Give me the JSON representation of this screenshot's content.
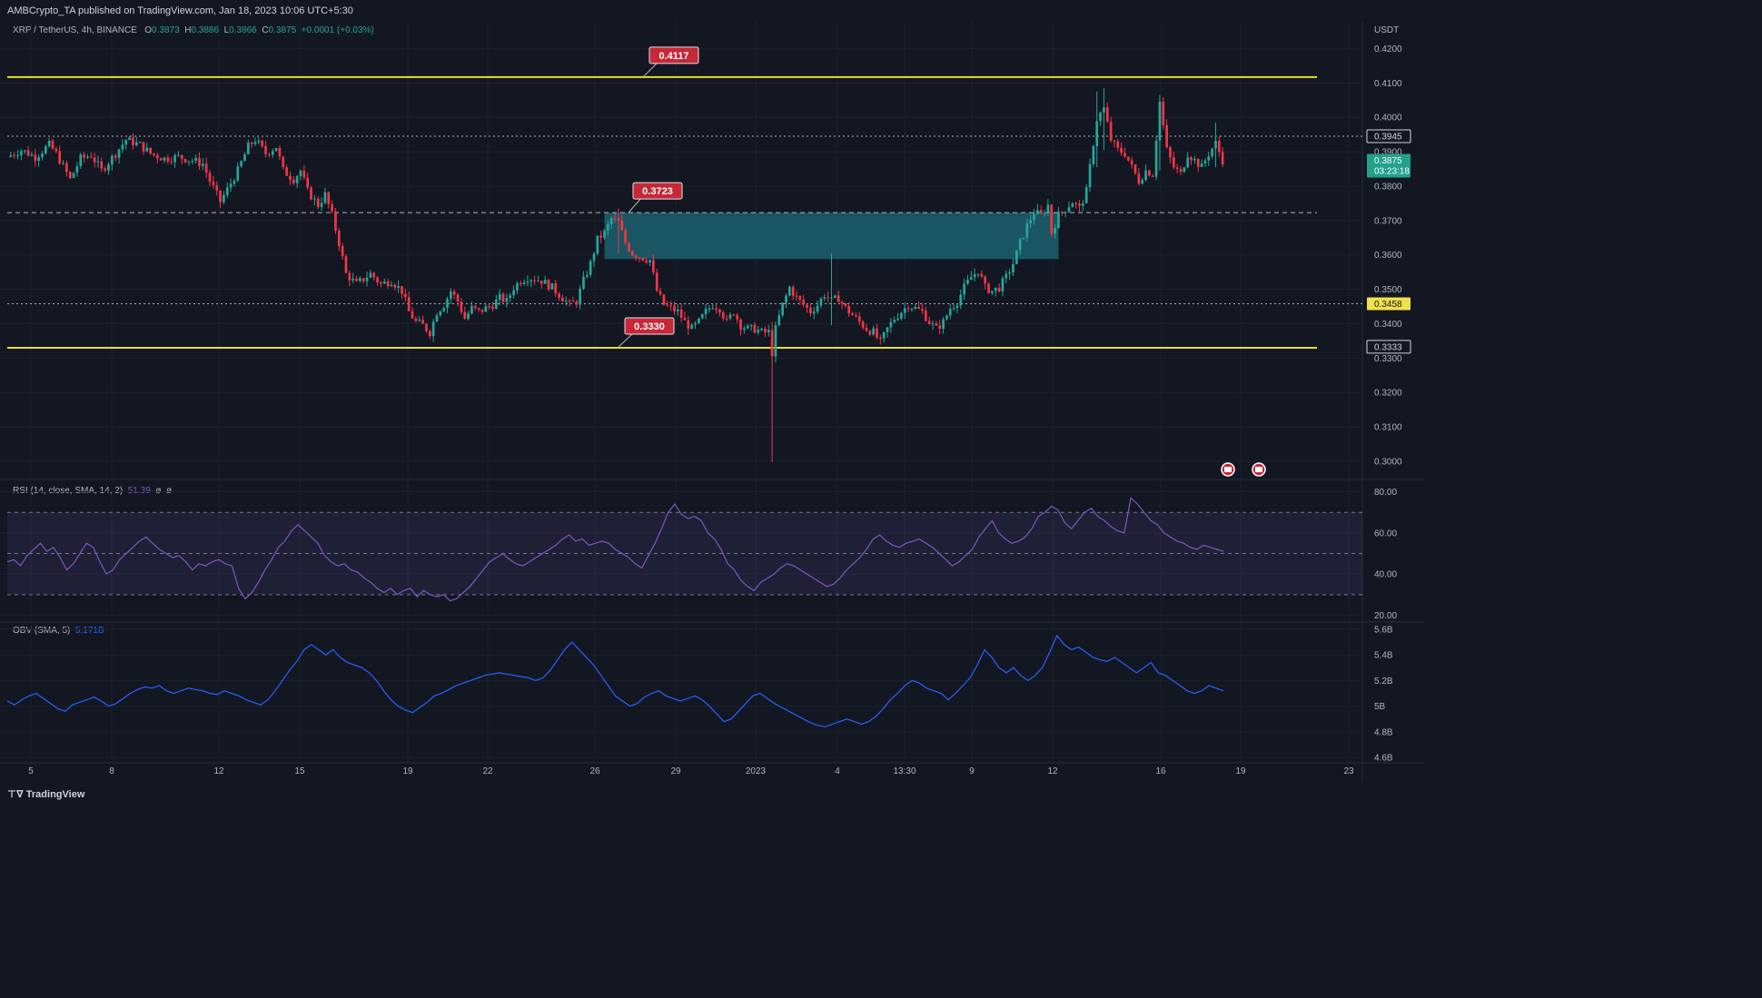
{
  "header": {
    "published": "AMBCrypto_TA published on TradingView.com, Jan 18, 2023 10:06 UTC+5:30",
    "symbol": "XRP / TetherUS, 4h, BINANCE",
    "o_label": "O",
    "o_value": "0.3873",
    "h_label": "H",
    "h_value": "0.3886",
    "l_label": "L",
    "l_value": "0.3866",
    "c_label": "C",
    "c_value": "0.3875",
    "change": "+0.0001 (+0.03%)"
  },
  "footer": {
    "brand": "TradingView"
  },
  "colors": {
    "up": "#26a69a",
    "down": "#f23645",
    "level": "#e8e02a",
    "zone": "#1c6b78",
    "rsi": "#7e57c2",
    "obv": "#2962ff",
    "grid": "#1e222d"
  },
  "chart_data": [
    {
      "type": "candlestick",
      "currency": "USDT",
      "y_ticks": [
        "0.4200",
        "0.4100",
        "0.4000",
        "0.3900",
        "0.3800",
        "0.3700",
        "0.3600",
        "0.3500",
        "0.3400",
        "0.3300",
        "0.3200",
        "0.3100",
        "0.3000"
      ],
      "ylim": [
        0.2955,
        0.4225
      ],
      "x_ticks": [
        "5",
        "8",
        "12",
        "15",
        "19",
        "22",
        "26",
        "29",
        "2023",
        "4",
        "13:30",
        "9",
        "12",
        "16",
        "19",
        "23"
      ],
      "levels": [
        {
          "value": 0.4117,
          "label": "0.4117",
          "style": "solid",
          "color": "#e8e02a"
        },
        {
          "value": 0.333,
          "label": "0.3330",
          "style": "solid",
          "color": "#e8e02a"
        },
        {
          "value": 0.3723,
          "label": "0.3723",
          "style": "dashed",
          "color": "#b2b5be"
        },
        {
          "value": 0.3945,
          "label": "0.3945",
          "style": "dotted",
          "color": "#b2b5be"
        },
        {
          "value": 0.3458,
          "label": "0.3458",
          "style": "dotted",
          "color": "#b2b5be"
        }
      ],
      "axis_labels": [
        {
          "text": "0.3945",
          "kind": "dark"
        },
        {
          "text": "0.3875",
          "sub": "03:23:18",
          "kind": "green"
        },
        {
          "text": "0.3458",
          "kind": "yellow"
        },
        {
          "text": "0.3333",
          "kind": "dark"
        }
      ],
      "zone": {
        "top": 0.3723,
        "bottom": 0.3588
      },
      "close_path": [
        [
          0,
          0.3885
        ],
        [
          4,
          0.3905
        ],
        [
          8,
          0.3885
        ],
        [
          12,
          0.392
        ],
        [
          14,
          0.3895
        ],
        [
          18,
          0.382
        ],
        [
          21,
          0.388
        ],
        [
          24,
          0.389
        ],
        [
          27,
          0.3845
        ],
        [
          31,
          0.3895
        ],
        [
          34,
          0.3935
        ],
        [
          38,
          0.392
        ],
        [
          41,
          0.3895
        ],
        [
          45,
          0.388
        ],
        [
          49,
          0.3885
        ],
        [
          53,
          0.3875
        ],
        [
          56,
          0.3865
        ],
        [
          58,
          0.3815
        ],
        [
          61,
          0.3755
        ],
        [
          63,
          0.379
        ],
        [
          66,
          0.3845
        ],
        [
          69,
          0.3915
        ],
        [
          71,
          0.3935
        ],
        [
          74,
          0.3895
        ],
        [
          77,
          0.3915
        ],
        [
          79,
          0.3845
        ],
        [
          82,
          0.382
        ],
        [
          84,
          0.3845
        ],
        [
          86,
          0.3785
        ],
        [
          89,
          0.3745
        ],
        [
          91,
          0.3775
        ],
        [
          93,
          0.3715
        ],
        [
          95,
          0.3635
        ],
        [
          97,
          0.3545
        ],
        [
          100,
          0.3515
        ],
        [
          104,
          0.3545
        ],
        [
          107,
          0.3515
        ],
        [
          110,
          0.3525
        ],
        [
          113,
          0.3495
        ],
        [
          115,
          0.3435
        ],
        [
          117,
          0.3405
        ],
        [
          119,
          0.3395
        ],
        [
          121,
          0.3375
        ],
        [
          123,
          0.3435
        ],
        [
          125,
          0.3455
        ],
        [
          127,
          0.3495
        ],
        [
          129,
          0.3465
        ],
        [
          131,
          0.3415
        ],
        [
          133,
          0.3445
        ],
        [
          135,
          0.3435
        ],
        [
          137,
          0.3445
        ],
        [
          139,
          0.3455
        ],
        [
          141,
          0.3475
        ],
        [
          143,
          0.3465
        ],
        [
          145,
          0.3505
        ],
        [
          147,
          0.3525
        ],
        [
          149,
          0.3535
        ],
        [
          153,
          0.3525
        ],
        [
          156,
          0.3505
        ],
        [
          159,
          0.3475
        ],
        [
          161,
          0.3455
        ],
        [
          163,
          0.3465
        ],
        [
          165,
          0.3525
        ],
        [
          167,
          0.3575
        ],
        [
          169,
          0.3645
        ],
        [
          171,
          0.3665
        ],
        [
          173,
          0.3705
        ],
        [
          175,
          0.3695
        ],
        [
          177,
          0.3635
        ],
        [
          179,
          0.3605
        ],
        [
          181,
          0.3595
        ],
        [
          184,
          0.3585
        ],
        [
          186,
          0.3495
        ],
        [
          188,
          0.3455
        ],
        [
          190,
          0.3445
        ],
        [
          192,
          0.3435
        ],
        [
          194,
          0.3405
        ],
        [
          196,
          0.3385
        ],
        [
          198,
          0.3405
        ],
        [
          200,
          0.3435
        ],
        [
          202,
          0.3455
        ],
        [
          204,
          0.3445
        ],
        [
          206,
          0.3405
        ],
        [
          208,
          0.3435
        ],
        [
          210,
          0.3395
        ],
        [
          212,
          0.3385
        ],
        [
          214,
          0.3385
        ],
        [
          216,
          0.3375
        ],
        [
          218,
          0.3375
        ],
        [
          219,
          0.3315
        ],
        [
          220,
          0.3385
        ],
        [
          222,
          0.3455
        ],
        [
          224,
          0.3505
        ],
        [
          226,
          0.3475
        ],
        [
          228,
          0.3455
        ],
        [
          230,
          0.3435
        ],
        [
          232,
          0.3455
        ],
        [
          234,
          0.3485
        ],
        [
          236,
          0.3465
        ],
        [
          238,
          0.3475
        ],
        [
          240,
          0.3445
        ],
        [
          242,
          0.3425
        ],
        [
          244,
          0.3405
        ],
        [
          246,
          0.3385
        ],
        [
          248,
          0.3375
        ],
        [
          250,
          0.3345
        ],
        [
          252,
          0.3385
        ],
        [
          254,
          0.3415
        ],
        [
          256,
          0.3435
        ],
        [
          258,
          0.3455
        ],
        [
          260,
          0.3445
        ],
        [
          262,
          0.3435
        ],
        [
          264,
          0.3405
        ],
        [
          266,
          0.3385
        ],
        [
          268,
          0.3405
        ],
        [
          270,
          0.3445
        ],
        [
          272,
          0.3465
        ],
        [
          274,
          0.3505
        ],
        [
          276,
          0.3535
        ],
        [
          278,
          0.3555
        ],
        [
          280,
          0.3505
        ],
        [
          282,
          0.3495
        ],
        [
          284,
          0.3505
        ],
        [
          286,
          0.3535
        ],
        [
          288,
          0.3575
        ],
        [
          290,
          0.3635
        ],
        [
          292,
          0.3685
        ],
        [
          294,
          0.3725
        ],
        [
          296,
          0.3715
        ],
        [
          298,
          0.3745
        ],
        [
          299,
          0.3665
        ],
        [
          301,
          0.3715
        ],
        [
          303,
          0.3735
        ],
        [
          305,
          0.3755
        ],
        [
          307,
          0.3735
        ],
        [
          309,
          0.3785
        ],
        [
          310,
          0.3855
        ],
        [
          312,
          0.3995
        ],
        [
          314,
          0.4025
        ],
        [
          316,
          0.3935
        ],
        [
          318,
          0.3905
        ],
        [
          320,
          0.3895
        ],
        [
          322,
          0.3855
        ],
        [
          324,
          0.3815
        ],
        [
          326,
          0.3845
        ],
        [
          328,
          0.3835
        ],
        [
          330,
          0.4045
        ],
        [
          332,
          0.3905
        ],
        [
          334,
          0.3855
        ],
        [
          336,
          0.3835
        ],
        [
          338,
          0.3895
        ],
        [
          340,
          0.3875
        ],
        [
          342,
          0.3855
        ],
        [
          344,
          0.3895
        ],
        [
          346,
          0.3925
        ],
        [
          348,
          0.3875
        ]
      ],
      "spikes": [
        {
          "i": 219,
          "low": 0.2998,
          "high": 0.3405
        },
        {
          "i": 236,
          "low": 0.3395,
          "high": 0.3605
        },
        {
          "i": 312,
          "low": 0.3855,
          "high": 0.4075
        },
        {
          "i": 314,
          "low": 0.3905,
          "high": 0.4085
        },
        {
          "i": 330,
          "low": 0.3845,
          "high": 0.4065
        },
        {
          "i": 346,
          "low": 0.3855,
          "high": 0.3985
        },
        {
          "i": 175,
          "low": 0.3605,
          "high": 0.3735
        }
      ]
    },
    {
      "type": "line",
      "title": "RSI (14, close, SMA, 14, 2)",
      "values_shown": [
        "51.39",
        "ø",
        "ø"
      ],
      "y_ticks": [
        "80.00",
        "60.00",
        "40.00",
        "20.00"
      ],
      "ylim": [
        18,
        82
      ],
      "band": [
        30,
        70
      ],
      "midline": 50,
      "series": [
        {
          "values": [
            46,
            47,
            44,
            49,
            52,
            55,
            51,
            53,
            48,
            42,
            45,
            50,
            55,
            53,
            46,
            40,
            42,
            47,
            50,
            53,
            56,
            58,
            55,
            52,
            50,
            48,
            49,
            46,
            42,
            45,
            44,
            46,
            47,
            45,
            44,
            33,
            28,
            31,
            36,
            42,
            47,
            53,
            56,
            61,
            64,
            61,
            58,
            55,
            49,
            46,
            44,
            45,
            42,
            41,
            38,
            36,
            33,
            31,
            33,
            30,
            32,
            33,
            29,
            32,
            30,
            29,
            30,
            27,
            28,
            31,
            34,
            38,
            42,
            46,
            48,
            50,
            47,
            45,
            44,
            46,
            48,
            50,
            52,
            54,
            57,
            59,
            56,
            57,
            54,
            55,
            56,
            55,
            52,
            50,
            48,
            45,
            43,
            49,
            55,
            62,
            70,
            74,
            69,
            67,
            68,
            66,
            60,
            57,
            52,
            45,
            42,
            37,
            34,
            32,
            36,
            38,
            40,
            43,
            45,
            44,
            42,
            40,
            38,
            36,
            34,
            35,
            38,
            42,
            45,
            48,
            52,
            57,
            59,
            56,
            54,
            53,
            55,
            56,
            57,
            55,
            53,
            50,
            47,
            44,
            46,
            49,
            52,
            58,
            62,
            66,
            60,
            57,
            55,
            56,
            58,
            62,
            68,
            70,
            73,
            71,
            65,
            62,
            66,
            70,
            72,
            68,
            66,
            63,
            61,
            60,
            77,
            74,
            70,
            66,
            64,
            60,
            58,
            56,
            55,
            53,
            52,
            54,
            53,
            52,
            51
          ]
        }
      ]
    },
    {
      "type": "line",
      "title": "OBV (SMA, 5)",
      "value_shown": "5.171B",
      "y_ticks": [
        "5.6B",
        "5.4B",
        "5.2B",
        "5B",
        "4.8B",
        "4.6B"
      ],
      "ylim": [
        4.58,
        5.62
      ],
      "series": [
        {
          "values": [
            5.04,
            5.01,
            5.05,
            5.08,
            5.1,
            5.06,
            5.02,
            4.98,
            4.96,
            5.01,
            5.03,
            5.05,
            5.07,
            5.04,
            5.0,
            5.02,
            5.06,
            5.1,
            5.13,
            5.15,
            5.14,
            5.16,
            5.12,
            5.1,
            5.12,
            5.14,
            5.13,
            5.12,
            5.1,
            5.09,
            5.12,
            5.1,
            5.08,
            5.05,
            5.03,
            5.01,
            5.05,
            5.12,
            5.2,
            5.28,
            5.35,
            5.44,
            5.48,
            5.44,
            5.4,
            5.44,
            5.38,
            5.34,
            5.32,
            5.3,
            5.26,
            5.2,
            5.12,
            5.05,
            5.0,
            4.97,
            4.95,
            4.99,
            5.03,
            5.08,
            5.1,
            5.13,
            5.16,
            5.18,
            5.2,
            5.22,
            5.24,
            5.25,
            5.26,
            5.25,
            5.24,
            5.23,
            5.22,
            5.2,
            5.22,
            5.28,
            5.36,
            5.44,
            5.5,
            5.44,
            5.38,
            5.32,
            5.24,
            5.16,
            5.08,
            5.04,
            5.0,
            5.02,
            5.07,
            5.1,
            5.12,
            5.08,
            5.06,
            5.04,
            5.06,
            5.08,
            5.05,
            5.0,
            4.94,
            4.88,
            4.9,
            4.96,
            5.02,
            5.08,
            5.1,
            5.06,
            5.02,
            4.99,
            4.96,
            4.93,
            4.9,
            4.87,
            4.85,
            4.84,
            4.86,
            4.88,
            4.9,
            4.88,
            4.86,
            4.88,
            4.92,
            4.98,
            5.05,
            5.1,
            5.16,
            5.2,
            5.18,
            5.14,
            5.12,
            5.1,
            5.05,
            5.1,
            5.16,
            5.22,
            5.32,
            5.44,
            5.38,
            5.3,
            5.26,
            5.3,
            5.24,
            5.2,
            5.24,
            5.3,
            5.42,
            5.55,
            5.48,
            5.44,
            5.46,
            5.42,
            5.38,
            5.36,
            5.35,
            5.38,
            5.34,
            5.3,
            5.26,
            5.3,
            5.34,
            5.26,
            5.24,
            5.2,
            5.16,
            5.12,
            5.1,
            5.12,
            5.16,
            5.14,
            5.12
          ]
        }
      ]
    }
  ]
}
